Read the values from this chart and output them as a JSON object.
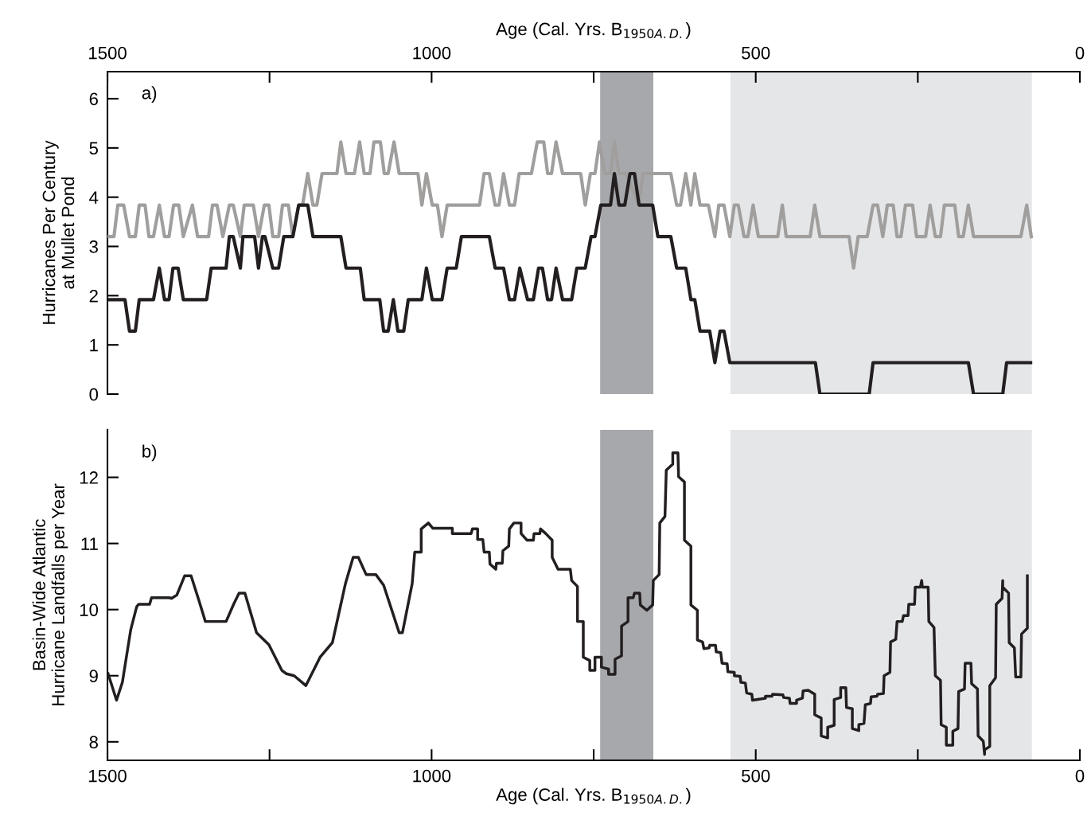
{
  "chart_data": [
    {
      "type": "line",
      "xlabel": "Age (Cal. Yrs. B$_{1950A.D.}$)",
      "ylabel": "Hurricanes Per Century\nat Mullet Pond",
      "annotations": [
        "a)"
      ],
      "xlim": [
        1500,
        0
      ],
      "xticks": [
        1500,
        {
          "value": 1250,
          "label": null
        },
        1000,
        {
          "value": 750,
          "label": null
        },
        500,
        {
          "value": 250,
          "label": null
        },
        0
      ],
      "ylim": [
        0,
        6.55
      ],
      "yticks": [
        0,
        1,
        2,
        3,
        4,
        5,
        6
      ],
      "grid": false,
      "marker": "none",
      "line_style": "solid",
      "bands": [
        {
          "axis": "x",
          "from": 740,
          "to": 658,
          "color": "#a7a8ab"
        },
        {
          "axis": "x",
          "from": 539,
          "to": 74,
          "color": "#e5e6e8"
        }
      ],
      "series": [
        {
          "color": "#a09f9e",
          "x": [
            1500,
            1490,
            1484,
            1475,
            1466,
            1457,
            1451,
            1442,
            1436,
            1429,
            1420,
            1412,
            1405,
            1398,
            1390,
            1383,
            1369,
            1361,
            1344,
            1338,
            1331,
            1322,
            1312,
            1306,
            1295,
            1289,
            1275,
            1267,
            1258,
            1251,
            1245,
            1236,
            1230,
            1221,
            1214,
            1205,
            1199,
            1191,
            1183,
            1177,
            1169,
            1146,
            1140,
            1132,
            1119,
            1111,
            1104,
            1095,
            1089,
            1079,
            1073,
            1067,
            1058,
            1050,
            1021,
            1015,
            1008,
            999,
            991,
            984,
            976,
            926,
            919,
            911,
            902,
            896,
            889,
            880,
            872,
            865,
            846,
            837,
            827,
            821,
            815,
            808,
            798,
            770,
            763,
            755,
            748,
            741,
            733,
            724,
            718,
            711,
            700,
            680,
            674,
            631,
            622,
            616,
            608,
            600,
            594,
            586,
            573,
            563,
            557,
            549,
            540,
            533,
            527,
            518,
            512,
            504,
            496,
            466,
            459,
            453,
            416,
            409,
            401,
            356,
            349,
            342,
            328,
            319,
            312,
            304,
            297,
            288,
            282,
            276,
            269,
            258,
            252,
            238,
            231,
            223,
            215,
            209,
            193,
            187,
            180,
            172,
            164,
            91,
            82,
            75
          ],
          "values": [
            3.2,
            3.2,
            3.84,
            3.84,
            3.2,
            3.2,
            3.84,
            3.84,
            3.2,
            3.2,
            3.84,
            3.2,
            3.2,
            3.84,
            3.84,
            3.2,
            3.84,
            3.2,
            3.2,
            3.84,
            3.84,
            3.2,
            3.84,
            3.84,
            3.2,
            3.84,
            3.84,
            3.2,
            3.84,
            3.84,
            3.2,
            3.2,
            3.84,
            3.84,
            3.2,
            3.84,
            3.84,
            4.48,
            3.84,
            3.84,
            4.48,
            4.48,
            5.12,
            4.48,
            4.48,
            5.12,
            4.48,
            4.48,
            5.12,
            5.12,
            4.48,
            4.48,
            5.12,
            4.48,
            4.48,
            3.84,
            4.48,
            3.84,
            3.84,
            3.2,
            3.84,
            3.84,
            4.48,
            4.48,
            3.84,
            3.84,
            4.48,
            3.84,
            3.84,
            4.48,
            4.48,
            5.12,
            5.12,
            4.48,
            4.48,
            5.12,
            4.48,
            4.48,
            3.84,
            4.48,
            4.48,
            5.12,
            4.48,
            4.48,
            5.12,
            4.48,
            4.48,
            3.84,
            4.48,
            4.48,
            3.84,
            3.84,
            4.48,
            3.84,
            4.48,
            3.84,
            3.84,
            3.2,
            3.84,
            3.84,
            3.2,
            3.84,
            3.84,
            3.2,
            3.2,
            3.84,
            3.2,
            3.2,
            3.84,
            3.2,
            3.2,
            3.84,
            3.2,
            3.2,
            2.56,
            3.2,
            3.2,
            3.84,
            3.84,
            3.2,
            3.84,
            3.84,
            3.2,
            3.2,
            3.84,
            3.84,
            3.2,
            3.2,
            3.84,
            3.2,
            3.2,
            3.84,
            3.84,
            3.2,
            3.2,
            3.84,
            3.2,
            3.2,
            3.84,
            3.2
          ]
        },
        {
          "color": "#231f20",
          "x": [
            1500,
            1473,
            1466,
            1457,
            1451,
            1429,
            1420,
            1412,
            1405,
            1399,
            1391,
            1383,
            1347,
            1340,
            1317,
            1312,
            1306,
            1295,
            1291,
            1273,
            1267,
            1261,
            1257,
            1245,
            1236,
            1228,
            1214,
            1205,
            1191,
            1183,
            1140,
            1132,
            1110,
            1104,
            1080,
            1074,
            1067,
            1059,
            1052,
            1043,
            1036,
            1015,
            1008,
            999,
            984,
            976,
            962,
            954,
            911,
            902,
            889,
            880,
            872,
            864,
            852,
            843,
            835,
            829,
            821,
            815,
            808,
            798,
            784,
            776,
            763,
            754,
            748,
            739,
            724,
            718,
            711,
            702,
            694,
            687,
            680,
            659,
            651,
            631,
            622,
            608,
            600,
            594,
            586,
            571,
            563,
            555,
            549,
            540,
            408,
            401,
            325,
            319,
            172,
            164,
            119,
            113,
            76
          ],
          "values": [
            1.92,
            1.92,
            1.28,
            1.28,
            1.92,
            1.92,
            2.56,
            1.92,
            1.92,
            2.56,
            2.56,
            1.92,
            1.92,
            2.56,
            2.56,
            3.2,
            3.2,
            2.56,
            3.2,
            3.2,
            2.56,
            3.2,
            3.2,
            2.56,
            2.56,
            3.2,
            3.2,
            3.84,
            3.84,
            3.2,
            3.2,
            2.56,
            2.56,
            1.92,
            1.92,
            1.28,
            1.28,
            1.92,
            1.28,
            1.28,
            1.92,
            1.92,
            2.56,
            1.92,
            1.92,
            2.56,
            2.56,
            3.2,
            3.2,
            2.56,
            2.56,
            1.92,
            1.92,
            2.56,
            1.92,
            1.92,
            2.56,
            2.56,
            1.92,
            1.92,
            2.56,
            1.92,
            1.92,
            2.56,
            2.56,
            3.2,
            3.2,
            3.84,
            3.84,
            4.48,
            3.84,
            3.84,
            4.48,
            4.48,
            3.84,
            3.84,
            3.2,
            3.2,
            2.56,
            2.56,
            1.92,
            1.92,
            1.28,
            1.28,
            0.64,
            1.28,
            1.28,
            0.64,
            0.64,
            0,
            0,
            0.64,
            0.64,
            0,
            0,
            0.64,
            0.64
          ]
        }
      ]
    },
    {
      "type": "line",
      "xlabel": "Age (Cal. Yrs. B$_{1950A.D.}$)",
      "ylabel": "Basin-Wide Atlantic\nHurricane Landfalls per Year",
      "annotations": [
        "b)"
      ],
      "xlim": [
        1500,
        0
      ],
      "xticks": [
        1500,
        {
          "value": 1250,
          "label": null
        },
        1000,
        {
          "value": 750,
          "label": null
        },
        500,
        {
          "value": 250,
          "label": null
        },
        0
      ],
      "ylim": [
        7.72,
        12.72
      ],
      "yticks": [
        8,
        9,
        10,
        11,
        12
      ],
      "grid": false,
      "marker": "none",
      "line_style": "solid",
      "bands": [
        {
          "axis": "x",
          "from": 740,
          "to": 658,
          "color": "#a7a8ab"
        },
        {
          "axis": "x",
          "from": 539,
          "to": 74,
          "color": "#e5e6e8"
        }
      ],
      "series": [
        {
          "color": "#231f20",
          "x": [
            1499,
            1486,
            1477,
            1464,
            1455,
            1452,
            1435,
            1432,
            1405,
            1401,
            1393,
            1381,
            1371,
            1359,
            1349,
            1317,
            1305,
            1297,
            1288,
            1270,
            1251,
            1231,
            1224,
            1212,
            1194,
            1172,
            1153,
            1133,
            1121,
            1113,
            1101,
            1086,
            1074,
            1050,
            1045,
            1030,
            1026,
            1016,
            1016,
            1005,
            998,
            968,
            968,
            939,
            937,
            929,
            929,
            921,
            919,
            911,
            910,
            901,
            900,
            891,
            890,
            881,
            880,
            873,
            862,
            862,
            853,
            843,
            842,
            833,
            832,
            824,
            814,
            814,
            805,
            786,
            784,
            775,
            775,
            766,
            766,
            756,
            756,
            748,
            748,
            738,
            738,
            727,
            727,
            717,
            717,
            707,
            707,
            697,
            697,
            689,
            687,
            679,
            678,
            668,
            659,
            658,
            649,
            648,
            640,
            638,
            628,
            628,
            620,
            619,
            610,
            610,
            600,
            600,
            590,
            590,
            582,
            580,
            572,
            571,
            562,
            561,
            554,
            552,
            544,
            543,
            533,
            533,
            524,
            523,
            516,
            514,
            506,
            505,
            485,
            485,
            475,
            474,
            458,
            457,
            448,
            447,
            437,
            437,
            428,
            427,
            419,
            409,
            409,
            399,
            399,
            389,
            389,
            379,
            379,
            369,
            369,
            361,
            360,
            351,
            351,
            341,
            341,
            333,
            331,
            323,
            322,
            313,
            312,
            303,
            302,
            293,
            292,
            284,
            282,
            274,
            272,
            265,
            264,
            255,
            254,
            246,
            244,
            243,
            234,
            233,
            225,
            223,
            215,
            214,
            206,
            206,
            196,
            196,
            188,
            187,
            178,
            177,
            168,
            167,
            158,
            157,
            149,
            147,
            147,
            139,
            139,
            130,
            129,
            120,
            119,
            119,
            110,
            109,
            101,
            99,
            91,
            90,
            81,
            81
          ],
          "values": [
            9.03,
            8.63,
            8.9,
            9.7,
            10.04,
            10.08,
            10.08,
            10.18,
            10.18,
            10.17,
            10.22,
            10.51,
            10.51,
            10.14,
            9.82,
            9.82,
            10.09,
            10.25,
            10.25,
            9.65,
            9.47,
            9.08,
            9.03,
            9.0,
            8.85,
            9.28,
            9.5,
            10.39,
            10.79,
            10.79,
            10.53,
            10.53,
            10.37,
            9.65,
            9.65,
            10.39,
            10.87,
            10.87,
            11.22,
            11.31,
            11.23,
            11.23,
            11.15,
            11.15,
            11.22,
            11.22,
            11.06,
            11.06,
            10.87,
            10.87,
            10.69,
            10.61,
            10.7,
            10.7,
            10.89,
            10.96,
            11.22,
            11.31,
            11.31,
            11.15,
            11.05,
            11.05,
            11.15,
            11.15,
            11.22,
            11.15,
            11.05,
            10.79,
            10.61,
            10.61,
            10.44,
            10.35,
            9.82,
            9.82,
            9.28,
            9.23,
            9.08,
            9.08,
            9.28,
            9.28,
            9.13,
            9.1,
            9.02,
            9.02,
            9.25,
            9.3,
            9.75,
            9.82,
            10.18,
            10.18,
            10.25,
            10.25,
            10.07,
            9.99,
            10.07,
            10.44,
            10.53,
            11.31,
            11.41,
            12.11,
            12.2,
            12.37,
            12.37,
            12.01,
            11.93,
            11.05,
            10.96,
            10.07,
            9.99,
            9.54,
            9.51,
            9.41,
            9.42,
            9.46,
            9.46,
            9.36,
            9.35,
            9.19,
            9.18,
            9.06,
            9.05,
            9.0,
            8.99,
            8.9,
            8.89,
            8.74,
            8.72,
            8.63,
            8.66,
            8.69,
            8.69,
            8.72,
            8.71,
            8.67,
            8.66,
            8.58,
            8.58,
            8.63,
            8.66,
            8.77,
            8.78,
            8.72,
            8.41,
            8.36,
            8.09,
            8.06,
            8.22,
            8.25,
            8.64,
            8.67,
            8.82,
            8.82,
            8.52,
            8.5,
            8.2,
            8.17,
            8.26,
            8.28,
            8.56,
            8.58,
            8.68,
            8.69,
            8.72,
            8.73,
            9.0,
            9.05,
            9.51,
            9.55,
            9.82,
            9.82,
            9.91,
            9.91,
            10.08,
            10.08,
            10.34,
            10.34,
            10.44,
            10.34,
            10.34,
            9.82,
            9.73,
            9.0,
            8.93,
            8.26,
            8.22,
            7.95,
            7.95,
            8.16,
            8.2,
            8.76,
            8.8,
            9.19,
            9.19,
            8.88,
            8.8,
            8.09,
            8.01,
            7.81,
            7.88,
            7.93,
            8.85,
            8.97,
            10.08,
            10.17,
            10.44,
            10.34,
            10.25,
            9.5,
            9.42,
            8.98,
            8.98,
            9.63,
            9.72,
            10.51
          ]
        }
      ]
    }
  ]
}
